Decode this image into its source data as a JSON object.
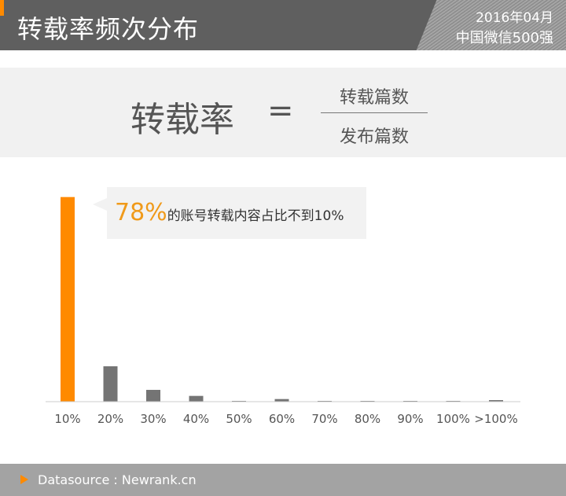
{
  "header": {
    "title": "转载率频次分布",
    "date": "2016年04月",
    "subtitle": "中国微信500强"
  },
  "formula": {
    "lhs": "转载率",
    "equals": "=",
    "numerator": "转载篇数",
    "denominator": "发布篇数"
  },
  "callout": {
    "percent": "78%",
    "text": "的账号转载内容占比不到10%"
  },
  "footer": {
    "source": "Datasource : Newrank.cn"
  },
  "colors": {
    "highlight": "#ff8a00",
    "bar": "#747474"
  },
  "chart_data": {
    "type": "bar",
    "categories": [
      "10%",
      "20%",
      "30%",
      "40%",
      "50%",
      "60%",
      "70%",
      "80%",
      "90%",
      "100%",
      ">100%"
    ],
    "values": [
      78,
      13.5,
      4.5,
      2.2,
      0.3,
      1.0,
      0.2,
      0.2,
      0.2,
      0.3,
      0.6
    ],
    "ylim": [
      0,
      80
    ],
    "highlight_index": 0,
    "grid": false
  }
}
